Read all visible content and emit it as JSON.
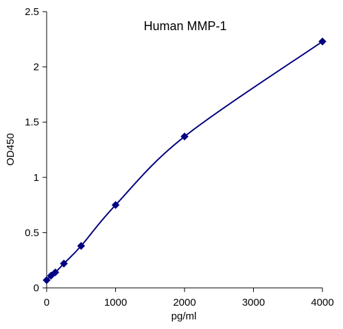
{
  "chart_data": {
    "type": "line",
    "title": "Human MMP-1",
    "xlabel": "pg/ml",
    "ylabel": "OD450",
    "xlim": [
      0,
      4000
    ],
    "ylim": [
      0,
      2.5
    ],
    "xticks": [
      "0",
      "1000",
      "2000",
      "3000",
      "4000"
    ],
    "yticks": [
      "0",
      "0.5",
      "1",
      "1.5",
      "2",
      "2.5"
    ],
    "grid": false,
    "legend": "none",
    "series": [
      {
        "x": [
          0,
          62.5,
          125,
          250,
          500,
          1000,
          2000,
          4000
        ],
        "y": [
          0.07,
          0.11,
          0.14,
          0.22,
          0.38,
          0.75,
          1.37,
          2.23
        ],
        "marker": "diamond",
        "color": "#000080"
      }
    ]
  }
}
